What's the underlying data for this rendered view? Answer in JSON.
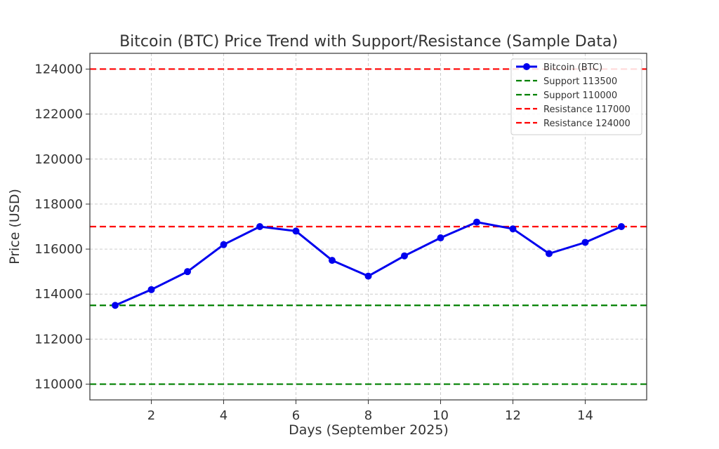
{
  "chart_data": {
    "type": "line",
    "title": "Bitcoin (BTC) Price Trend with Support/Resistance (Sample Data)",
    "xlabel": "Days (September 2025)",
    "ylabel": "Price (USD)",
    "xlim": [
      0.3,
      15.7
    ],
    "ylim": [
      109300,
      124700
    ],
    "x_ticks": [
      2,
      4,
      6,
      8,
      10,
      12,
      14
    ],
    "y_ticks": [
      110000,
      112000,
      114000,
      116000,
      118000,
      120000,
      122000,
      124000
    ],
    "grid": true,
    "legend_position": "top-right",
    "series": [
      {
        "name": "Bitcoin (BTC)",
        "color": "#0000ee",
        "marker": "circle",
        "x": [
          1,
          2,
          3,
          4,
          5,
          6,
          7,
          8,
          9,
          10,
          11,
          12,
          13,
          14,
          15
        ],
        "y": [
          113500,
          114200,
          115000,
          116200,
          117000,
          116800,
          115500,
          114800,
          115700,
          116500,
          117200,
          116900,
          115800,
          116300,
          117000
        ]
      }
    ],
    "reference_lines": [
      {
        "name": "Support 113500",
        "value": 113500,
        "color": "#008000",
        "style": "dashed"
      },
      {
        "name": "Support 110000",
        "value": 110000,
        "color": "#008000",
        "style": "dashed"
      },
      {
        "name": "Resistance 117000",
        "value": 117000,
        "color": "#ff0000",
        "style": "dashed"
      },
      {
        "name": "Resistance 124000",
        "value": 124000,
        "color": "#ff0000",
        "style": "dashed"
      }
    ]
  }
}
